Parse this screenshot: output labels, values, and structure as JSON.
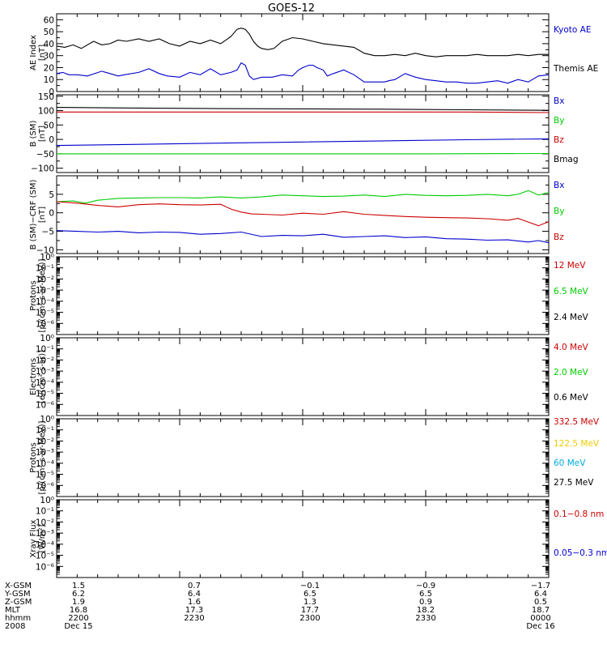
{
  "title": "GOES-12",
  "chart_data": [
    {
      "type": "line",
      "ylabel": "AE Index\n[nT]",
      "ylim": [
        0,
        65
      ],
      "yticks": [
        "0",
        "10",
        "20",
        "30",
        "40",
        "50",
        "60"
      ],
      "tickvals": [
        0,
        10,
        20,
        30,
        40,
        50,
        60
      ],
      "legend": [
        {
          "label": "Kyoto AE",
          "color": "#0000cc"
        },
        {
          "label": "Themis AE",
          "color": "#000000"
        }
      ],
      "series": [
        {
          "name": "Kyoto AE",
          "color": "#0000cc",
          "x": [
            0,
            3,
            6,
            10,
            15,
            22,
            26,
            30,
            33,
            40,
            45,
            50,
            54,
            60,
            65,
            70,
            75,
            80,
            85,
            88,
            90,
            92,
            94,
            96,
            100,
            105,
            110,
            115,
            118,
            120,
            123,
            125,
            127,
            130,
            132,
            135,
            140,
            145,
            150,
            155,
            160,
            162,
            165,
            170,
            175,
            180,
            185,
            190,
            195,
            200,
            205,
            210,
            215,
            220,
            225,
            230,
            235,
            240
          ],
          "values": [
            15,
            16,
            14,
            14,
            13,
            17,
            15,
            13,
            14,
            16,
            19,
            15,
            13,
            12,
            16,
            14,
            19,
            14,
            16,
            18,
            24,
            22,
            13,
            10,
            12,
            12,
            14,
            13,
            18,
            20,
            22,
            22,
            20,
            18,
            13,
            15,
            18,
            14,
            8,
            8,
            8,
            9,
            10,
            15,
            12,
            10,
            9,
            8,
            8,
            7,
            7,
            8,
            9,
            7,
            10,
            8,
            13,
            14
          ]
        },
        {
          "name": "Themis AE",
          "color": "#000000",
          "x": [
            0,
            4,
            8,
            12,
            18,
            22,
            26,
            30,
            34,
            40,
            45,
            50,
            55,
            60,
            65,
            70,
            75,
            80,
            85,
            88,
            90,
            92,
            94,
            96,
            98,
            100,
            103,
            106,
            110,
            115,
            120,
            125,
            130,
            135,
            140,
            145,
            150,
            155,
            160,
            165,
            170,
            175,
            180,
            185,
            190,
            195,
            200,
            205,
            210,
            215,
            220,
            225,
            230,
            235,
            240
          ],
          "values": [
            38,
            37,
            39,
            36,
            42,
            39,
            40,
            43,
            42,
            44,
            42,
            44,
            40,
            38,
            42,
            40,
            43,
            40,
            46,
            52,
            53,
            52,
            48,
            42,
            38,
            36,
            35,
            36,
            42,
            45,
            44,
            42,
            40,
            39,
            38,
            37,
            32,
            30,
            30,
            31,
            30,
            32,
            30,
            29,
            30,
            30,
            30,
            31,
            30,
            30,
            30,
            31,
            30,
            31,
            31
          ]
        }
      ]
    },
    {
      "type": "line",
      "ylabel": "B (SM)\n[nT]",
      "ylim": [
        -115,
        155
      ],
      "yticks": [
        "−100",
        "−50",
        "0",
        "50",
        "100",
        "150"
      ],
      "tickvals": [
        -100,
        -50,
        0,
        50,
        100,
        150
      ],
      "legend": [
        {
          "label": "Bx",
          "color": "#0000cc"
        },
        {
          "label": "By",
          "color": "#00cc00"
        },
        {
          "label": "Bz",
          "color": "#cc0000"
        },
        {
          "label": "Bmag",
          "color": "#000000"
        }
      ],
      "series": [
        {
          "name": "Bmag",
          "color": "#000000",
          "x": [
            0,
            40,
            80,
            120,
            160,
            200,
            240
          ],
          "values": [
            111,
            109,
            107,
            106,
            105,
            103,
            101
          ]
        },
        {
          "name": "Bz",
          "color": "#cc0000",
          "x": [
            0,
            40,
            80,
            120,
            160,
            200,
            240
          ],
          "values": [
            95,
            95,
            95,
            95,
            95,
            95,
            93
          ]
        },
        {
          "name": "Bx",
          "color": "#0000cc",
          "x": [
            0,
            40,
            80,
            120,
            160,
            200,
            240
          ],
          "values": [
            -21,
            -17,
            -13,
            -9,
            -5,
            -1,
            2
          ]
        },
        {
          "name": "By",
          "color": "#00cc00",
          "x": [
            0,
            60,
            120,
            180,
            240
          ],
          "values": [
            -50,
            -50,
            -50,
            -50,
            -49
          ]
        }
      ]
    },
    {
      "type": "line",
      "ylabel": "B (SM)−CRF (SM)\n[nT]",
      "ylim": [
        -11,
        10
      ],
      "yticks": [
        "−10",
        "−5",
        "0",
        "5"
      ],
      "tickvals": [
        -10,
        -5,
        0,
        5
      ],
      "legend": [
        {
          "label": "Bx",
          "color": "#0000cc"
        },
        {
          "label": "By",
          "color": "#00cc00"
        },
        {
          "label": "Bz",
          "color": "#cc0000"
        }
      ],
      "series": [
        {
          "name": "By",
          "color": "#00cc00",
          "x": [
            0,
            8,
            14,
            20,
            30,
            40,
            50,
            60,
            70,
            80,
            90,
            100,
            110,
            120,
            130,
            140,
            150,
            160,
            170,
            180,
            190,
            200,
            210,
            220,
            225,
            230,
            235,
            240
          ],
          "values": [
            3,
            3.2,
            2.6,
            3.4,
            3.9,
            4,
            4.1,
            4.1,
            4,
            4.3,
            4,
            4.3,
            4.8,
            4.6,
            4.4,
            4.5,
            4.8,
            4.4,
            5,
            4.7,
            4.6,
            4.7,
            5,
            4.6,
            5,
            6,
            4.8,
            5.5
          ]
        },
        {
          "name": "Bz",
          "color": "#cc0000",
          "x": [
            0,
            10,
            20,
            30,
            40,
            50,
            60,
            70,
            80,
            85,
            90,
            95,
            100,
            110,
            120,
            130,
            140,
            150,
            160,
            170,
            180,
            190,
            200,
            210,
            220,
            225,
            230,
            235,
            240
          ],
          "values": [
            3,
            2.6,
            2,
            1.6,
            2.2,
            2.4,
            2.2,
            2.1,
            2.3,
            1,
            0.2,
            -0.3,
            -0.4,
            -0.6,
            -0.1,
            -0.4,
            0.3,
            -0.4,
            -0.7,
            -1,
            -1.2,
            -1.3,
            -1.4,
            -1.6,
            -2,
            -1.5,
            -2.5,
            -3.5,
            -2.4
          ]
        },
        {
          "name": "Bx",
          "color": "#0000cc",
          "x": [
            0,
            10,
            20,
            30,
            40,
            50,
            60,
            70,
            80,
            90,
            100,
            110,
            120,
            130,
            140,
            150,
            160,
            170,
            180,
            190,
            200,
            210,
            220,
            230,
            235,
            240
          ],
          "values": [
            -4.8,
            -5,
            -5.2,
            -5,
            -5.4,
            -5.2,
            -5.3,
            -5.8,
            -5.6,
            -5.2,
            -6.4,
            -6.1,
            -6.2,
            -5.8,
            -6.6,
            -6.4,
            -6.2,
            -6.7,
            -6.5,
            -7,
            -7.1,
            -7.4,
            -7.3,
            -7.9,
            -7.5,
            -8.1
          ]
        }
      ]
    },
    {
      "type": "line",
      "ylabel": "Protons\n[p/(cm²-s-sr-MeV)]",
      "ylim": [
        -7,
        0
      ],
      "yticks": [
        "10⁰",
        "10⁻¹",
        "10⁻²",
        "10⁻³",
        "10⁻⁴",
        "10⁻⁵",
        "10⁻⁶"
      ],
      "tickvals": [
        0,
        -1,
        -2,
        -3,
        -4,
        -5,
        -6
      ],
      "log": true,
      "legend": [
        {
          "label": "12 MeV",
          "color": "#cc0000"
        },
        {
          "label": "6.5 MeV",
          "color": "#00cc00"
        },
        {
          "label": "2.4 MeV",
          "color": "#000000"
        }
      ],
      "series": []
    },
    {
      "type": "line",
      "ylabel": "Electrons\n[e/(cm²-s-sr)]",
      "ylim": [
        -7,
        0
      ],
      "yticks": [
        "10⁰",
        "10⁻¹",
        "10⁻²",
        "10⁻³",
        "10⁻⁴",
        "10⁻⁵",
        "10⁻⁶"
      ],
      "tickvals": [
        0,
        -1,
        -2,
        -3,
        -4,
        -5,
        -6
      ],
      "log": true,
      "legend": [
        {
          "label": "4.0 MeV",
          "color": "#cc0000"
        },
        {
          "label": "2.0 MeV",
          "color": "#00cc00"
        },
        {
          "label": "0.6 MeV",
          "color": "#000000"
        }
      ],
      "series": []
    },
    {
      "type": "line",
      "ylabel": "Protons\n[p/(cm²-s-sr-MeV)]",
      "ylim": [
        -7,
        0
      ],
      "yticks": [
        "10⁰",
        "10⁻¹",
        "10⁻²",
        "10⁻³",
        "10⁻⁴",
        "10⁻⁵",
        "10⁻⁶"
      ],
      "tickvals": [
        0,
        -1,
        -2,
        -3,
        -4,
        -5,
        -6
      ],
      "log": true,
      "legend": [
        {
          "label": "332.5 MeV",
          "color": "#cc0000"
        },
        {
          "label": "122.5 MeV",
          "color": "#eecc00"
        },
        {
          "label": "60 MeV",
          "color": "#00aadd"
        },
        {
          "label": "27.5 MeV",
          "color": "#000000"
        }
      ],
      "series": []
    },
    {
      "type": "line",
      "ylabel": "Xray Flux\n[W/m²]",
      "ylim": [
        -7,
        0
      ],
      "yticks": [
        "10⁰",
        "10⁻¹",
        "10⁻²",
        "10⁻³",
        "10⁻⁴",
        "10⁻⁵",
        "10⁻⁶"
      ],
      "tickvals": [
        0,
        -1,
        -2,
        -3,
        -4,
        -5,
        -6
      ],
      "log": true,
      "legend": [
        {
          "label": "0.1−0.8 nm",
          "color": "#cc0000"
        },
        {
          "label": "0.05−0.3 nm",
          "color": "#0000cc"
        }
      ],
      "series": []
    }
  ],
  "footer": {
    "row_labels": [
      "X-GSM",
      "Y-GSM",
      "Z-GSM",
      "MLT",
      "hhmm",
      "2008"
    ],
    "columns": [
      [
        "1.5",
        "6.2",
        "1.9",
        "16.8",
        "2200",
        "Dec 15"
      ],
      [
        "0.7",
        "6.4",
        "1.6",
        "17.3",
        "2230",
        ""
      ],
      [
        "−0.1",
        "6.5",
        "1.3",
        "17.7",
        "2300",
        ""
      ],
      [
        "−0.9",
        "6.5",
        "0.9",
        "18.2",
        "2330",
        ""
      ],
      [
        "−1.7",
        "6.4",
        "0.5",
        "18.7",
        "0000",
        "Dec 16"
      ]
    ]
  }
}
